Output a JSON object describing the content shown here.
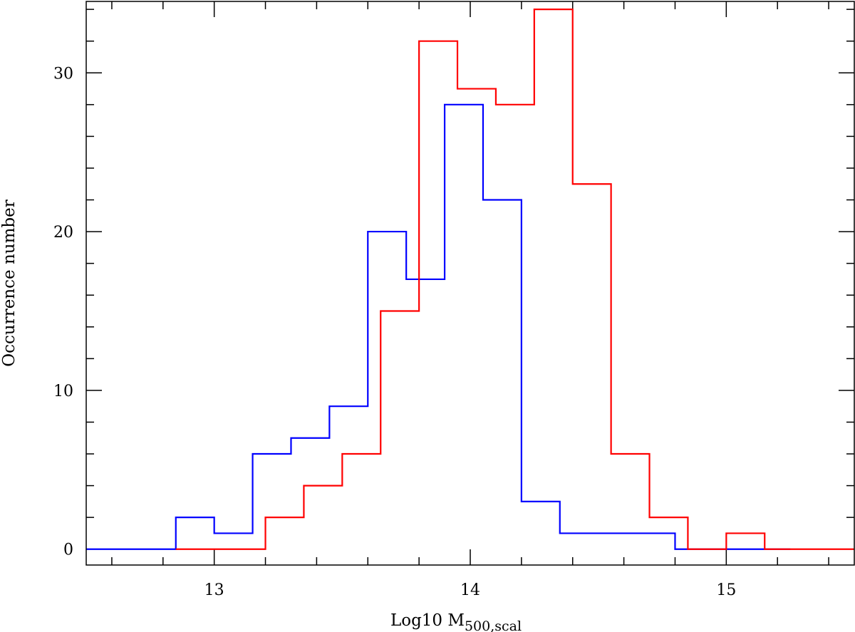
{
  "chart_data": {
    "type": "histogram",
    "xlabel": "Log10  M",
    "xlabel_subscript": "500,scal",
    "ylabel": "Occurrence  number",
    "xlim": [
      12.5,
      15.5
    ],
    "ylim": [
      -1,
      34.5
    ],
    "x_ticks": [
      13,
      14,
      15
    ],
    "x_minor_step": 0.2,
    "y_ticks": [
      0,
      10,
      20,
      30
    ],
    "y_minor_step": 2,
    "grid": false,
    "series": [
      {
        "color": "#0000ff",
        "edges": [
          12.5,
          12.85,
          13.0,
          13.15,
          13.3,
          13.45,
          13.6,
          13.75,
          13.9,
          14.05,
          14.2,
          14.35,
          14.8,
          15.25
        ],
        "values": [
          0,
          2,
          1,
          6,
          7,
          9,
          20,
          17,
          28,
          22,
          3,
          1,
          0
        ]
      },
      {
        "color": "#ff0000",
        "edges": [
          12.85,
          13.2,
          13.35,
          13.5,
          13.65,
          13.8,
          13.95,
          14.1,
          14.25,
          14.4,
          14.55,
          14.7,
          14.85,
          15.0,
          15.15,
          15.5
        ],
        "values": [
          0,
          2,
          4,
          6,
          15,
          32,
          29,
          28,
          34,
          23,
          6,
          2,
          0,
          1,
          0
        ]
      }
    ]
  }
}
